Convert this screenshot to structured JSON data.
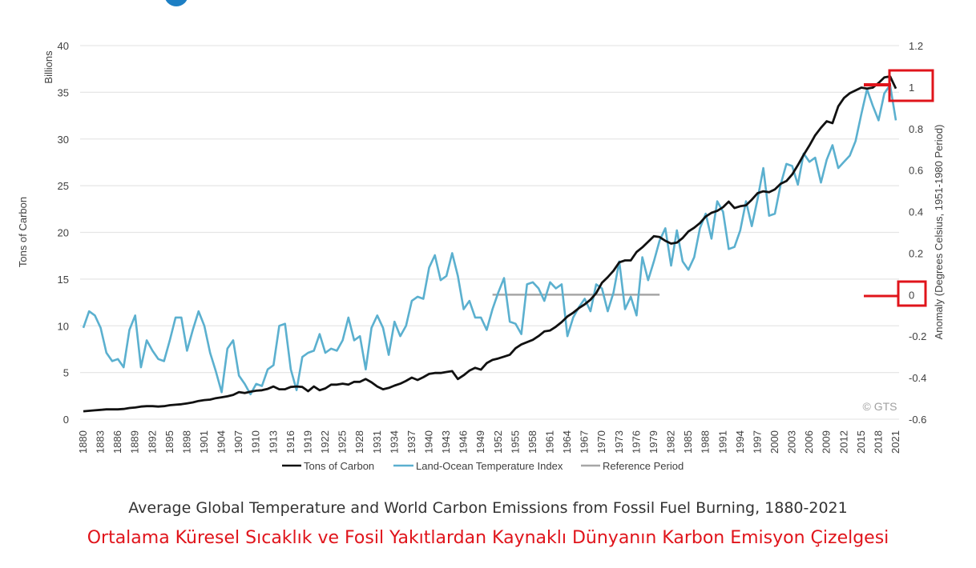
{
  "chart_data": {
    "type": "line",
    "title": "Average Global Temperature and World Carbon Emissions from Fossil Fuel Burning, 1880-2021",
    "subtitle_tr": "Ortalama Küresel Sıcaklık ve Fosil Yakıtlardan Kaynaklı Dünyanın Karbon Emisyon Çizelgesi",
    "xlabel": "",
    "ylabel_left": "Tons of Carbon",
    "ylabel_left_unit": "Billions",
    "ylabel_right": "Anomaly (Degrees Celsius, 1951-1980 Period)",
    "ylim_left": [
      0,
      40
    ],
    "ylim_right": [
      -0.6,
      1.2
    ],
    "yticks_left": [
      "0",
      "5",
      "10",
      "15",
      "20",
      "25",
      "30",
      "35",
      "40"
    ],
    "yticks_right": [
      "-0.6",
      "-0.4",
      "-0.2",
      "0",
      "0.2",
      "0.4",
      "0.6",
      "0.8",
      "1",
      "1.2"
    ],
    "xticks": [
      "1880",
      "1883",
      "1886",
      "1889",
      "1892",
      "1895",
      "1898",
      "1901",
      "1904",
      "1907",
      "1910",
      "1913",
      "1916",
      "1919",
      "1922",
      "1925",
      "1928",
      "1931",
      "1934",
      "1937",
      "1940",
      "1943",
      "1946",
      "1949",
      "1952",
      "1955",
      "1958",
      "1961",
      "1964",
      "1967",
      "1970",
      "1973",
      "1976",
      "1979",
      "1982",
      "1985",
      "1988",
      "1991",
      "1994",
      "1997",
      "2000",
      "2003",
      "2006",
      "2009",
      "2012",
      "2015",
      "2018",
      "2021"
    ],
    "x_start": 1880,
    "x_end": 2021,
    "grid": true,
    "legend_position": "bottom",
    "watermark": "© GTS",
    "annotations": [
      {
        "type": "highlight-box",
        "axis": "right",
        "label": "1",
        "color": "#e0141b"
      },
      {
        "type": "highlight-box",
        "axis": "right",
        "label": "0",
        "color": "#e0141b"
      }
    ],
    "series": [
      {
        "name": "Tons of Carbon",
        "axis": "left",
        "color": "#111111",
        "values": [
          0.85,
          0.9,
          0.95,
          1.0,
          1.05,
          1.05,
          1.05,
          1.1,
          1.2,
          1.25,
          1.35,
          1.4,
          1.4,
          1.35,
          1.4,
          1.5,
          1.55,
          1.6,
          1.7,
          1.8,
          1.95,
          2.05,
          2.1,
          2.25,
          2.35,
          2.45,
          2.6,
          2.9,
          2.8,
          2.95,
          3.05,
          3.1,
          3.25,
          3.5,
          3.2,
          3.2,
          3.45,
          3.5,
          3.45,
          3.0,
          3.5,
          3.1,
          3.3,
          3.7,
          3.7,
          3.8,
          3.7,
          4.0,
          4.0,
          4.3,
          3.95,
          3.5,
          3.2,
          3.35,
          3.6,
          3.8,
          4.1,
          4.45,
          4.2,
          4.5,
          4.85,
          4.95,
          4.95,
          5.05,
          5.15,
          4.3,
          4.7,
          5.2,
          5.5,
          5.3,
          6.0,
          6.35,
          6.5,
          6.7,
          6.9,
          7.6,
          8.0,
          8.25,
          8.5,
          8.9,
          9.4,
          9.5,
          9.9,
          10.4,
          11.0,
          11.4,
          11.9,
          12.3,
          12.8,
          13.5,
          14.6,
          15.2,
          15.9,
          16.8,
          17.0,
          17.0,
          17.9,
          18.4,
          19.0,
          19.6,
          19.5,
          19.1,
          18.8,
          18.9,
          19.4,
          20.1,
          20.5,
          21.0,
          21.7,
          22.1,
          22.3,
          22.7,
          23.3,
          22.6,
          22.8,
          22.9,
          23.5,
          24.2,
          24.4,
          24.3,
          24.6,
          25.2,
          25.5,
          26.2,
          27.2,
          28.3,
          29.3,
          30.4,
          31.2,
          31.9,
          31.7,
          33.5,
          34.4,
          34.9,
          35.2,
          35.5,
          35.4,
          35.5,
          36.0,
          36.6,
          36.7,
          35.4
        ]
      },
      {
        "name": "Land-Ocean Temperature Index",
        "axis": "right",
        "color": "#5bb0cf",
        "values": [
          -0.16,
          -0.08,
          -0.1,
          -0.16,
          -0.28,
          -0.32,
          -0.31,
          -0.35,
          -0.17,
          -0.1,
          -0.35,
          -0.22,
          -0.27,
          -0.31,
          -0.32,
          -0.22,
          -0.11,
          -0.11,
          -0.27,
          -0.17,
          -0.08,
          -0.15,
          -0.28,
          -0.37,
          -0.47,
          -0.26,
          -0.22,
          -0.39,
          -0.43,
          -0.48,
          -0.43,
          -0.44,
          -0.36,
          -0.34,
          -0.15,
          -0.14,
          -0.36,
          -0.46,
          -0.3,
          -0.28,
          -0.27,
          -0.19,
          -0.28,
          -0.26,
          -0.27,
          -0.22,
          -0.11,
          -0.22,
          -0.2,
          -0.36,
          -0.16,
          -0.1,
          -0.16,
          -0.29,
          -0.13,
          -0.2,
          -0.15,
          -0.03,
          -0.01,
          -0.02,
          0.13,
          0.19,
          0.07,
          0.09,
          0.2,
          0.09,
          -0.07,
          -0.03,
          -0.11,
          -0.11,
          -0.17,
          -0.07,
          0.01,
          0.08,
          -0.13,
          -0.14,
          -0.19,
          0.05,
          0.06,
          0.03,
          -0.03,
          0.06,
          0.03,
          0.05,
          -0.2,
          -0.11,
          -0.06,
          -0.02,
          -0.08,
          0.05,
          0.03,
          -0.08,
          0.01,
          0.16,
          -0.07,
          -0.01,
          -0.1,
          0.18,
          0.07,
          0.16,
          0.26,
          0.32,
          0.14,
          0.31,
          0.16,
          0.12,
          0.18,
          0.32,
          0.39,
          0.27,
          0.45,
          0.4,
          0.22,
          0.23,
          0.31,
          0.45,
          0.33,
          0.46,
          0.61,
          0.38,
          0.39,
          0.53,
          0.63,
          0.62,
          0.53,
          0.68,
          0.64,
          0.66,
          0.54,
          0.65,
          0.72,
          0.61,
          0.64,
          0.67,
          0.74,
          0.87,
          0.99,
          0.91,
          0.84,
          0.97,
          1.01,
          0.84
        ]
      },
      {
        "name": "Reference Period",
        "axis": "right",
        "color": "#a6a6a6",
        "x_range": [
          1951,
          1980
        ],
        "value": 0
      }
    ]
  }
}
